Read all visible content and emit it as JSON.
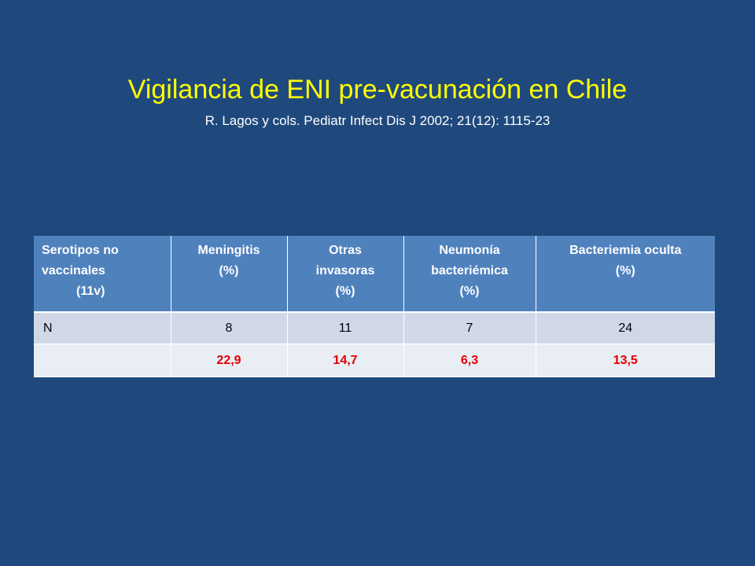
{
  "slide": {
    "title": "Vigilancia  de ENI pre-vacunación en Chile",
    "subtitle": "R. Lagos y cols. Pediatr Infect Dis J 2002; 21(12): 1115-23"
  },
  "table": {
    "headers": [
      [
        "Serotipos no",
        "vaccinales",
        "(11v)"
      ],
      [
        "Meningitis",
        "(%)"
      ],
      [
        "Otras",
        "invasoras",
        "(%)"
      ],
      [
        "Neumonía",
        "bacteriémica",
        "(%)"
      ],
      [
        "Bacteriemia oculta",
        "(%)"
      ]
    ],
    "rows": [
      {
        "label": "N",
        "values": [
          "8",
          "11",
          "7",
          "24"
        ]
      },
      {
        "label": "%",
        "values": [
          "22,9",
          "14,7",
          "6,3",
          "13,5"
        ]
      }
    ],
    "colors": {
      "header_bg": "#4F81BD",
      "row_odd": "#D0D8E8",
      "row_even": "#E9EDF4",
      "highlight": "#E00000"
    }
  }
}
